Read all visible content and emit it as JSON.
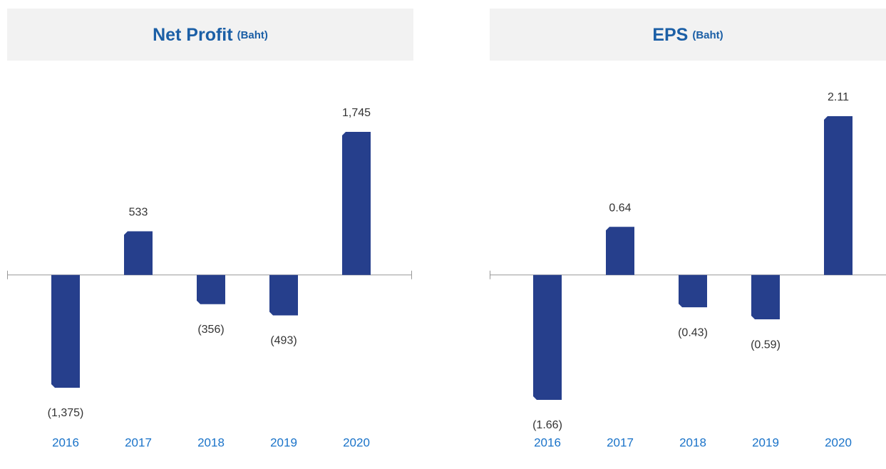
{
  "chart_data": [
    {
      "type": "bar",
      "title": "Net Profit",
      "subtitle": "(Baht)",
      "categories": [
        "2016",
        "2017",
        "2018",
        "2019",
        "2020"
      ],
      "values": [
        -1375,
        533,
        -356,
        -493,
        1745
      ],
      "value_labels": [
        "(1,375)",
        "533",
        "(356)",
        "(493)",
        "1,745"
      ],
      "color": "#263f8c"
    },
    {
      "type": "bar",
      "title": "EPS",
      "subtitle": "(Baht)",
      "categories": [
        "2016",
        "2017",
        "2018",
        "2019",
        "2020"
      ],
      "values": [
        -1.66,
        0.64,
        -0.43,
        -0.59,
        2.11
      ],
      "value_labels": [
        "(1.66)",
        "0.64",
        "(0.43)",
        "(0.59)",
        "2.11"
      ],
      "color": "#263f8c"
    }
  ]
}
